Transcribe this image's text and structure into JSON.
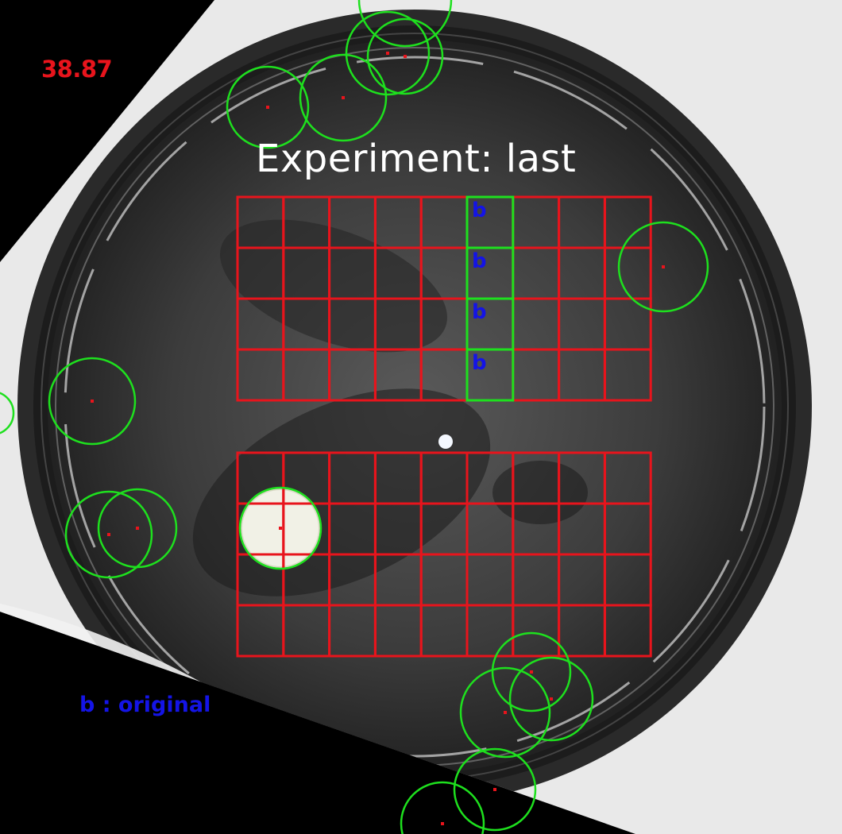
{
  "overlay": {
    "score": "38.87",
    "title": "Experiment: last",
    "legend": "b : original",
    "cell_marker": "b"
  },
  "colors": {
    "grid": "#e8141c",
    "highlight": "#1ee01e",
    "marker_text": "#1414e6",
    "detection_circle": "#1ee01e",
    "detection_center": "#e8141c",
    "background": "#000000"
  },
  "upper_grid": {
    "rows": 4,
    "cols": 9,
    "highlighted_cells": [
      [
        0,
        5
      ],
      [
        1,
        5
      ],
      [
        2,
        5
      ],
      [
        3,
        5
      ]
    ]
  },
  "lower_grid": {
    "rows": 4,
    "cols": 9,
    "highlighted_cells": []
  },
  "detections": {
    "count": 17
  }
}
